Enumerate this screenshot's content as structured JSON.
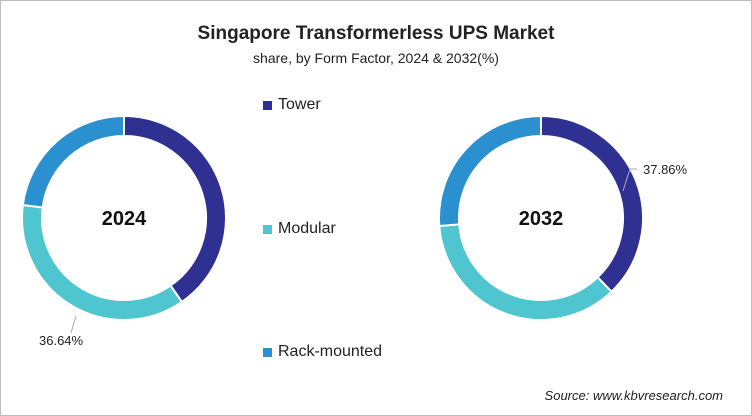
{
  "chart_data": {
    "type": "donut",
    "title": "Singapore Transformerless UPS Market",
    "subtitle": "share, by Form Factor, 2024 & 2032(%)",
    "categories": [
      "Tower",
      "Modular",
      "Rack-mounted"
    ],
    "colors": [
      "#2E3192",
      "#4FC5CF",
      "#2A90CF"
    ],
    "charts": [
      {
        "year": "2024",
        "values": [
          40.4,
          36.64,
          22.96
        ],
        "label": "36.64%",
        "labeled_category": "Modular"
      },
      {
        "year": "2032",
        "values": [
          37.86,
          35.9,
          26.24
        ],
        "label": "37.86%",
        "labeled_category": "Tower"
      }
    ],
    "legend_position": "center"
  },
  "source": "Source: www.kbvresearch.com"
}
